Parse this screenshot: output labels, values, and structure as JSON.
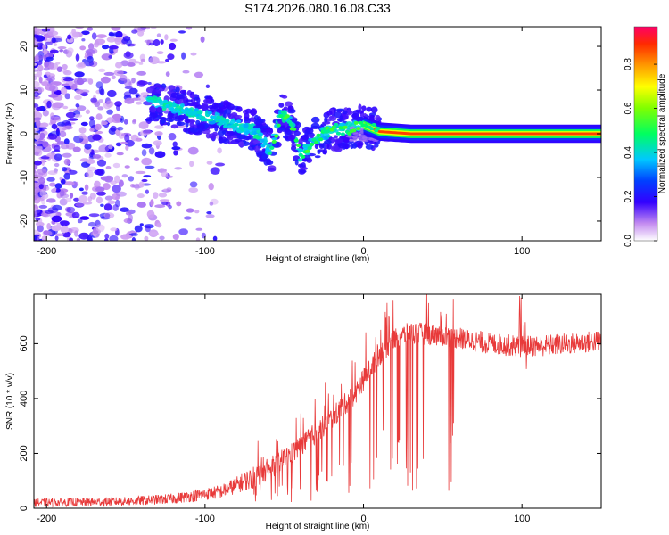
{
  "title": "S174.2026.080.16.08.C33",
  "chart_data": [
    {
      "type": "heatmap",
      "name": "spectrogram",
      "xlabel": "Height of straight line (km)",
      "ylabel": "Frequency (Hz)",
      "xlim": [
        -208,
        150
      ],
      "ylim": [
        -24.5,
        24.5
      ],
      "xticks": [
        -200,
        -100,
        0,
        100
      ],
      "yticks": [
        20,
        10,
        0,
        -10,
        -20
      ],
      "colorbar": {
        "label": "Normalized spectral amplitude",
        "range": [
          0,
          0.97
        ],
        "ticks": [
          0.0,
          0.2,
          0.4,
          0.6,
          0.8
        ],
        "tick_labels": [
          "0.0",
          "0.2",
          "0.4",
          "0.6",
          "0.8"
        ]
      },
      "ridge": {
        "description_points_x": [
          -130,
          -110,
          -90,
          -70,
          -58,
          -52,
          -45,
          -40,
          -30,
          -20,
          -10,
          0,
          10,
          30,
          60,
          100,
          150
        ],
        "description_points_y": [
          7,
          5,
          3,
          1,
          -4,
          5,
          2,
          -5,
          -1,
          1,
          1,
          2,
          0.5,
          0,
          0,
          0,
          0
        ]
      }
    },
    {
      "type": "line",
      "name": "snr",
      "xlabel": "Height of straight line (km)",
      "ylabel": "SNR (10 * v/v)",
      "xlim": [
        -208,
        150
      ],
      "ylim": [
        0,
        780
      ],
      "xticks": [
        -200,
        -100,
        0,
        100
      ],
      "yticks": [
        0,
        200,
        400,
        600
      ],
      "color": "#e83a3a",
      "trend_x": [
        -208,
        -150,
        -120,
        -90,
        -70,
        -55,
        -45,
        -35,
        -25,
        -15,
        -5,
        0,
        10,
        20,
        30,
        50,
        80,
        100,
        120,
        150
      ],
      "trend_y": [
        20,
        25,
        35,
        60,
        110,
        160,
        200,
        250,
        300,
        360,
        420,
        470,
        560,
        620,
        640,
        630,
        600,
        590,
        595,
        610
      ]
    }
  ]
}
